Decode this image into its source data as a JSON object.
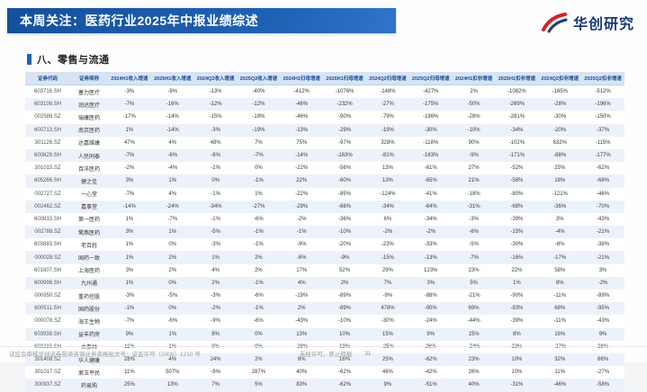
{
  "slide": {
    "title": "本周关注：医药行业2025年中报业绩综述",
    "brand": "华创研究",
    "section_title": "八、零售与流通",
    "footer": {
      "left": "证监会审核华创证券投资咨询业务资格批文号：证监许可（2009）1210 号",
      "center": "未经许可，禁止转载",
      "page": "31"
    },
    "colors": {
      "header_blue": "#1f62b5",
      "brand_red": "#d5202c",
      "table_header_bg": "#d8e4f4",
      "row_alt_bg": "#edf2fa"
    }
  },
  "table": {
    "headers": [
      "证券代码",
      "证券简称",
      "2024H1收入增速",
      "2025H1收入增速",
      "2024Q2收入增速",
      "2025Q2收入增速",
      "2024H1归母增速",
      "2025H1归母增速",
      "2024Q2归母增速",
      "2025Q2归母增速",
      "2024H1扣非增速",
      "2025H1扣非增速",
      "2024Q2扣非增速",
      "2025Q2扣非增速"
    ],
    "rows": [
      [
        "603716.SH",
        "塞力医疗",
        "-3%",
        "-9%",
        "-13%",
        "-40%",
        "-412%",
        "-1076%",
        "-148%",
        "-427%",
        "2%",
        "-1082%",
        "-165%",
        "-512%"
      ],
      [
        "603108.SH",
        "润达医疗",
        "-7%",
        "-16%",
        "-12%",
        "-12%",
        "-46%",
        "-232%",
        "-27%",
        "-175%",
        "-50%",
        "-269%",
        "-28%",
        "-196%"
      ],
      [
        "002589.SZ",
        "瑞康医药",
        "-17%",
        "-14%",
        "-15%",
        "-19%",
        "-46%",
        "-90%",
        "-79%",
        "-186%",
        "-28%",
        "-281%",
        "-30%",
        "-150%"
      ],
      [
        "600713.SH",
        "南京医药",
        "1%",
        "-14%",
        "-3%",
        "-19%",
        "-13%",
        "-29%",
        "-19%",
        "-30%",
        "-10%",
        "-34%",
        "-20%",
        "-37%"
      ],
      [
        "301126.SZ",
        "达嘉维康",
        "47%",
        "4%",
        "48%",
        "7%",
        "75%",
        "-97%",
        "328%",
        "-118%",
        "90%",
        "-102%",
        "632%",
        "-115%"
      ],
      [
        "600829.SH",
        "人民同泰",
        "-7%",
        "-6%",
        "-8%",
        "-7%",
        "-14%",
        "-163%",
        "-81%",
        "-163%",
        "-9%",
        "-171%",
        "-88%",
        "-177%"
      ],
      [
        "301015.SZ",
        "百洋医药",
        "-2%",
        "-4%",
        "-1%",
        "0%",
        "-22%",
        "-56%",
        "13%",
        "-61%",
        "27%",
        "-52%",
        "25%",
        "-62%"
      ],
      [
        "605266.SH",
        "健之佳",
        "3%",
        "1%",
        "0%",
        "-1%",
        "22%",
        "-60%",
        "13%",
        "-65%",
        "21%",
        "-58%",
        "18%",
        "-68%"
      ],
      [
        "002727.SZ",
        "一心堂",
        "-7%",
        "4%",
        "-1%",
        "1%",
        "-22%",
        "-85%",
        "-124%",
        "-41%",
        "-18%",
        "-80%",
        "-121%",
        "-46%"
      ],
      [
        "002462.SZ",
        "嘉事堂",
        "-14%",
        "-24%",
        "-34%",
        "-27%",
        "-29%",
        "-66%",
        "-34%",
        "-64%",
        "-31%",
        "-68%",
        "-36%",
        "-70%"
      ],
      [
        "600833.SH",
        "第一医药",
        "1%",
        "-7%",
        "-1%",
        "-6%",
        "-2%",
        "-36%",
        "6%",
        "-34%",
        "-3%",
        "-39%",
        "3%",
        "-43%"
      ],
      [
        "002788.SZ",
        "鹭燕医药",
        "3%",
        "1%",
        "-5%",
        "-1%",
        "-1%",
        "-10%",
        "-2%",
        "-2%",
        "-6%",
        "-15%",
        "-4%",
        "-21%"
      ],
      [
        "603883.SH",
        "老百姓",
        "1%",
        "0%",
        "-3%",
        "-1%",
        "-9%",
        "-20%",
        "-23%",
        "-33%",
        "-5%",
        "-30%",
        "-6%",
        "-38%"
      ],
      [
        "000028.SZ",
        "国药一致",
        "1%",
        "2%",
        "1%",
        "2%",
        "-6%",
        "-9%",
        "-15%",
        "-13%",
        "-7%",
        "-16%",
        "-17%",
        "-21%"
      ],
      [
        "601607.SH",
        "上海医药",
        "3%",
        "2%",
        "4%",
        "2%",
        "17%",
        "52%",
        "29%",
        "123%",
        "23%",
        "22%",
        "58%",
        "3%"
      ],
      [
        "600998.SH",
        "九州通",
        "1%",
        "0%",
        "2%",
        "-1%",
        "4%",
        "2%",
        "7%",
        "3%",
        "5%",
        "1%",
        "8%",
        "-2%"
      ],
      [
        "000950.SZ",
        "重药控股",
        "-3%",
        "-5%",
        "-3%",
        "-6%",
        "-19%",
        "-89%",
        "-9%",
        "-88%",
        "-21%",
        "-90%",
        "-11%",
        "-89%"
      ],
      [
        "600511.SH",
        "国药股份",
        "-1%",
        "0%",
        "-2%",
        "-1%",
        "2%",
        "-89%",
        "478%",
        "-90%",
        "69%",
        "-93%",
        "68%",
        "-95%"
      ],
      [
        "000078.SZ",
        "海王生物",
        "-7%",
        "-6%",
        "-9%",
        "-6%",
        "-43%",
        "-10%",
        "-30%",
        "-24%",
        "-44%",
        "-39%",
        "-11%",
        "-43%"
      ],
      [
        "603939.SH",
        "益丰药房",
        "9%",
        "1%",
        "8%",
        "0%",
        "13%",
        "10%",
        "15%",
        "9%",
        "15%",
        "8%",
        "16%",
        "9%"
      ],
      [
        "603233.SH",
        "大参林",
        "11%",
        "1%",
        "9%",
        "0%",
        "-28%",
        "19%",
        "-25%",
        "26%",
        "-24%",
        "23%",
        "-27%",
        "28%"
      ],
      [
        "301408.SZ",
        "华人健康",
        "28%",
        "4%",
        "24%",
        "2%",
        "6%",
        "16%",
        "25%",
        "-62%",
        "23%",
        "10%",
        "32%",
        "66%"
      ],
      [
        "301017.SZ",
        "漱玉平民",
        "11%",
        "507%",
        "-9%",
        "287%",
        "40%",
        "-62%",
        "46%",
        "-42%",
        "26%",
        "10%",
        "11%",
        "-27%"
      ],
      [
        "300937.SZ",
        "药易购",
        "25%",
        "13%",
        "7%",
        "5%",
        "83%",
        "-62%",
        "9%",
        "-51%",
        "40%",
        "-31%",
        "-46%",
        "-58%"
      ]
    ]
  }
}
